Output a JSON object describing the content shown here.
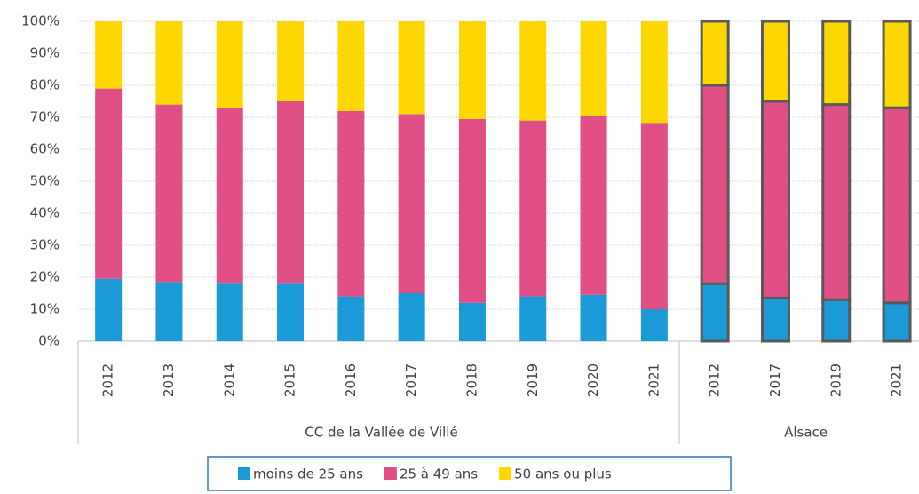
{
  "chart_data": {
    "type": "stacked_bar",
    "groups": [
      {
        "label": "CC de la Vallée de Villé",
        "categories": [
          "2012",
          "2013",
          "2014",
          "2015",
          "2016",
          "2017",
          "2018",
          "2019",
          "2020",
          "2021"
        ]
      },
      {
        "label": "Alsace",
        "outlined": true,
        "categories": [
          "2012",
          "2017",
          "2019",
          "2021"
        ]
      }
    ],
    "outline_color": "#595959",
    "series": [
      {
        "name": "moins de 25 ans",
        "color": "#1a9ad6",
        "values": [
          19.5,
          18.5,
          18,
          18,
          14,
          15,
          12,
          14,
          14.5,
          10,
          18,
          13.5,
          13,
          12
        ]
      },
      {
        "name": "25 à 49 ans",
        "color": "#e05087",
        "values": [
          59.5,
          55.5,
          55,
          57,
          58,
          56,
          57.5,
          55,
          56,
          58,
          62,
          61.5,
          61,
          61
        ]
      },
      {
        "name": "50 ans ou plus",
        "color": "#ffd700",
        "values": [
          21,
          26,
          27,
          25,
          28,
          29,
          30.5,
          31,
          29.5,
          32,
          20,
          25,
          26,
          27
        ]
      }
    ],
    "ylim": [
      0,
      100
    ],
    "yticks": [
      {
        "value": 0,
        "label": "0%"
      },
      {
        "value": 10,
        "label": "10%"
      },
      {
        "value": 20,
        "label": "20%"
      },
      {
        "value": 30,
        "label": "30%"
      },
      {
        "value": 40,
        "label": "40%"
      },
      {
        "value": 50,
        "label": "50%"
      },
      {
        "value": 60,
        "label": "60%"
      },
      {
        "value": 70,
        "label": "70%"
      },
      {
        "value": 80,
        "label": "80%"
      },
      {
        "value": 90,
        "label": "90%"
      },
      {
        "value": 100,
        "label": "100%"
      }
    ],
    "grid": true,
    "legend": "bottom"
  }
}
